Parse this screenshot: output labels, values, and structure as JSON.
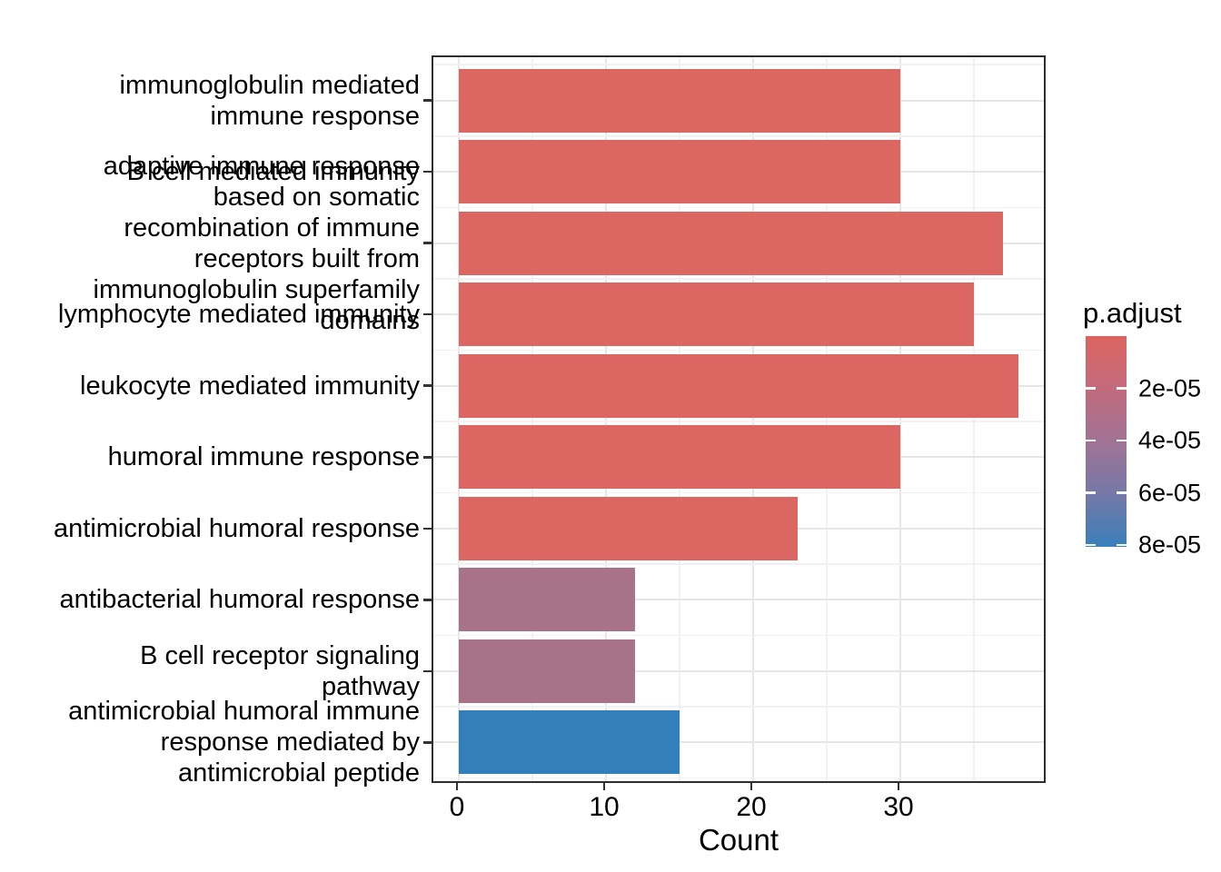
{
  "figure": {
    "background_color": "#FFFFFF",
    "description": "GO enrichment horizontal bar chart (barplot of enrichResult), bars colored by p.adjust"
  },
  "chart_data": {
    "type": "bar",
    "orientation": "horizontal",
    "title": "",
    "xlabel": "Count",
    "ylabel": "",
    "grid": "on",
    "xlim": [
      0,
      39.8
    ],
    "x_axis": {
      "major_ticks": [
        0,
        10,
        20,
        30
      ],
      "major_tick_labels": [
        "0",
        "10",
        "20",
        "30"
      ],
      "minor_ticks": [
        5,
        15,
        25,
        35
      ]
    },
    "bars": [
      {
        "category": "immunoglobulin mediated immune response",
        "label_lines": [
          "immunoglobulin mediated",
          "immune response"
        ],
        "count": 30,
        "p_adjust_approx": 1e-06,
        "color": "#DC6662"
      },
      {
        "category": "B cell mediated immunity",
        "label_lines": [
          "B cell mediated immunity"
        ],
        "count": 30,
        "p_adjust_approx": 1e-06,
        "color": "#DC6662"
      },
      {
        "category": "adaptive immune response based on somatic recombination of immune receptors built from immunoglobulin superfamily domains",
        "label_lines": [
          "adaptive immune response",
          "based on somatic",
          "recombination of immune",
          "receptors built from",
          "immunoglobulin superfamily",
          "domains"
        ],
        "count": 37,
        "p_adjust_approx": 1e-06,
        "color": "#DC6662"
      },
      {
        "category": "lymphocyte mediated immunity",
        "label_lines": [
          "lymphocyte mediated immunity"
        ],
        "count": 35,
        "p_adjust_approx": 1e-06,
        "color": "#DC6662"
      },
      {
        "category": "leukocyte mediated immunity",
        "label_lines": [
          "leukocyte mediated immunity"
        ],
        "count": 38,
        "p_adjust_approx": 1e-06,
        "color": "#DC6662"
      },
      {
        "category": "humoral immune response",
        "label_lines": [
          "humoral immune response"
        ],
        "count": 30,
        "p_adjust_approx": 1e-06,
        "color": "#DC6662"
      },
      {
        "category": "antimicrobial humoral response",
        "label_lines": [
          "antimicrobial humoral response"
        ],
        "count": 23,
        "p_adjust_approx": 2e-06,
        "color": "#DC6662"
      },
      {
        "category": "antibacterial humoral response",
        "label_lines": [
          "antibacterial humoral response"
        ],
        "count": 12,
        "p_adjust_approx": 4.5e-05,
        "color": "#A87389"
      },
      {
        "category": "B cell receptor signaling pathway",
        "label_lines": [
          "B cell receptor signaling",
          "pathway"
        ],
        "count": 12,
        "p_adjust_approx": 4.5e-05,
        "color": "#A87389"
      },
      {
        "category": "antimicrobial humoral immune response mediated by antimicrobial peptide",
        "label_lines": [
          "antimicrobial humoral immune",
          "response mediated by",
          "antimicrobial peptide"
        ],
        "count": 15,
        "p_adjust_approx": 8e-05,
        "color": "#337FBC"
      }
    ],
    "legend": {
      "title": "p.adjust",
      "position": "right",
      "range": [
        0,
        8.2e-05
      ],
      "tick_values": [
        2e-05,
        4e-05,
        6e-05,
        8e-05
      ],
      "tick_labels": [
        "2e-05",
        "4e-05",
        "6e-05",
        "8e-05"
      ],
      "gradient_stops": [
        {
          "pos": 0,
          "color": "#DC6460"
        },
        {
          "pos": 24.8,
          "color": "#C36A7C"
        },
        {
          "pos": 49.6,
          "color": "#A17394"
        },
        {
          "pos": 74.8,
          "color": "#7578A7"
        },
        {
          "pos": 100,
          "color": "#3A80BB"
        }
      ]
    }
  }
}
